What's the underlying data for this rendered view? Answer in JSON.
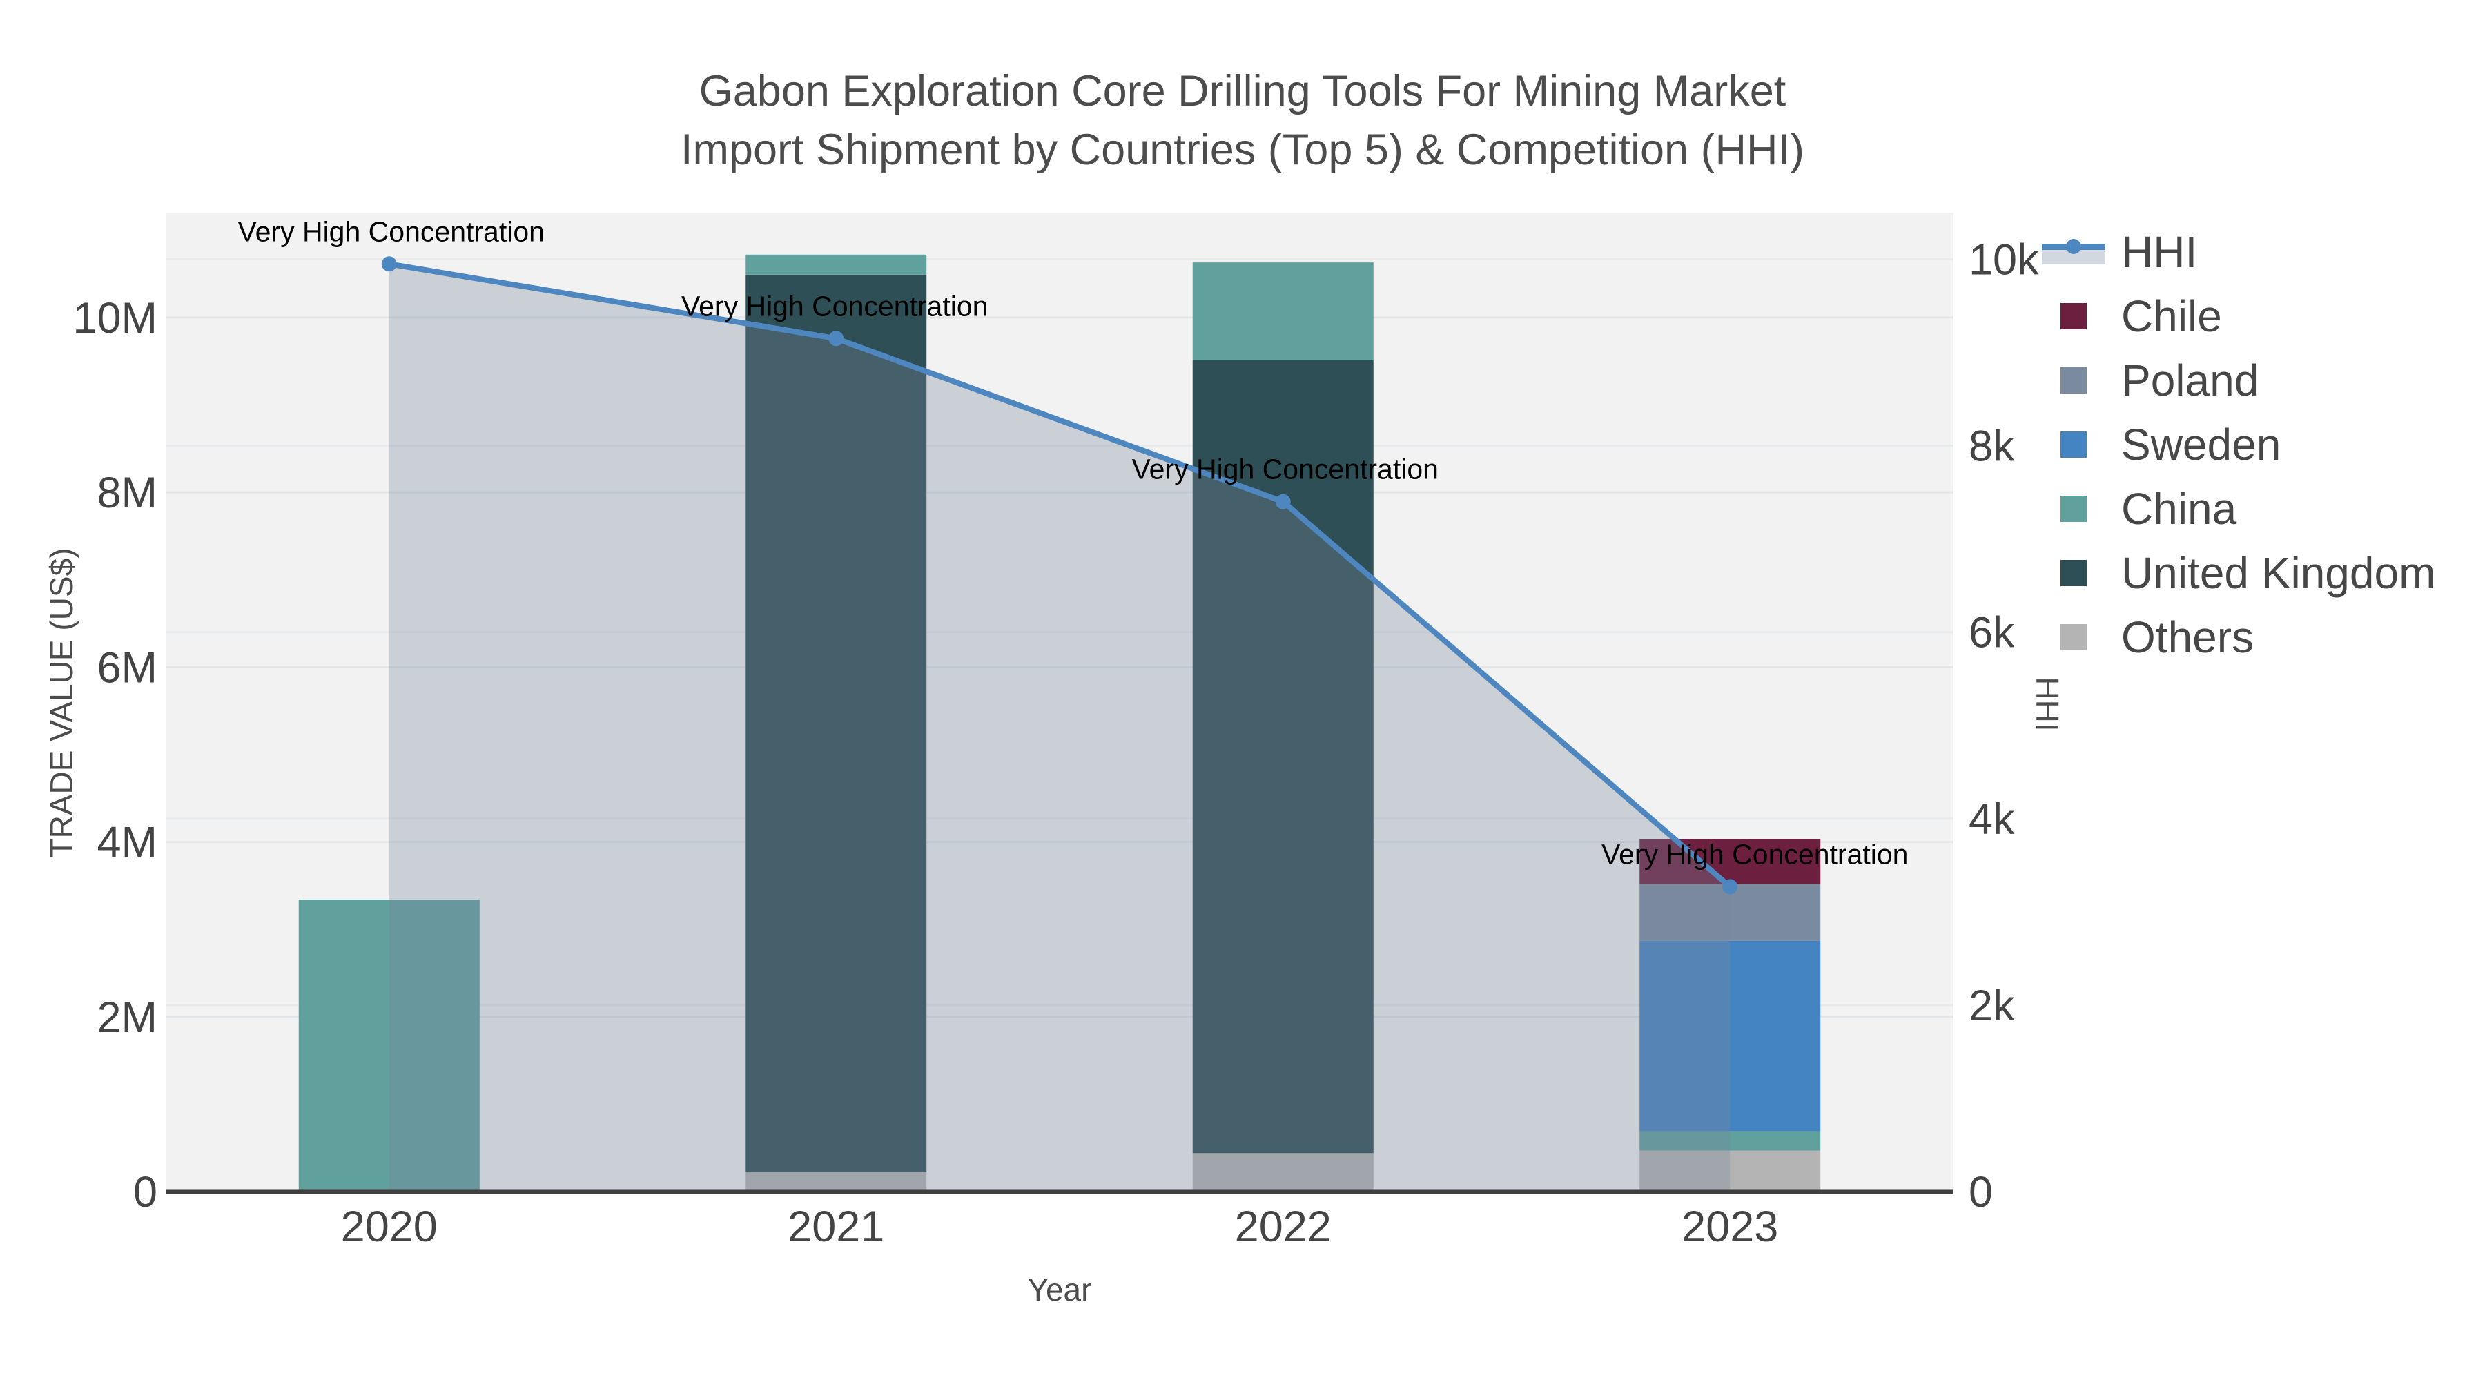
{
  "title": {
    "line1": "Gabon Exploration Core Drilling Tools For Mining Market",
    "line2": "Import Shipment by Countries (Top 5) & Competition (HHI)"
  },
  "axes": {
    "x": {
      "label": "Year",
      "ticks": [
        "2020",
        "2021",
        "2022",
        "2023"
      ]
    },
    "y_left": {
      "label": "TRADE VALUE (US$)",
      "ticks": [
        "0",
        "2M",
        "4M",
        "6M",
        "8M",
        "10M"
      ]
    },
    "y_right": {
      "label": "HHI",
      "ticks": [
        "0",
        "2k",
        "4k",
        "6k",
        "8k",
        "10k"
      ]
    }
  },
  "legend": {
    "items": [
      {
        "label": "HHI",
        "type": "line",
        "color": "#4e87c0"
      },
      {
        "label": "Chile",
        "type": "square",
        "color": "#6d1f40"
      },
      {
        "label": "Poland",
        "type": "square",
        "color": "#7b8b9f"
      },
      {
        "label": "Sweden",
        "type": "square",
        "color": "#4484c2"
      },
      {
        "label": "China",
        "type": "square",
        "color": "#60a19e"
      },
      {
        "label": "United Kingdom",
        "type": "square",
        "color": "#2d4f55"
      },
      {
        "label": "Others",
        "type": "square",
        "color": "#b4b4b4"
      }
    ]
  },
  "annotations": [
    {
      "text": "Very High Concentration",
      "year": "2020"
    },
    {
      "text": "Very High Concentration",
      "year": "2021"
    },
    {
      "text": "Very High Concentration",
      "year": "2022"
    },
    {
      "text": "Very High Concentration",
      "year": "2023"
    }
  ],
  "chart_data": {
    "type": "combo: stacked-bar + line (dual y-axis)",
    "categories": [
      "2020",
      "2021",
      "2022",
      "2023"
    ],
    "bar_unit": "US$ millions",
    "bar_series_bottom_to_top": [
      {
        "name": "Others",
        "color": "#b4b4b4",
        "values": [
          0,
          0.22,
          0.44,
          0.47
        ]
      },
      {
        "name": "United Kingdom",
        "color": "#2d4f55",
        "values": [
          0,
          10.27,
          9.07,
          0
        ]
      },
      {
        "name": "China",
        "color": "#60a19e",
        "values": [
          3.34,
          0.23,
          1.12,
          0.22
        ]
      },
      {
        "name": "Sweden",
        "color": "#4484c2",
        "values": [
          0,
          0,
          0,
          2.18
        ]
      },
      {
        "name": "Poland",
        "color": "#7b8b9f",
        "values": [
          0,
          0,
          0,
          0.65
        ]
      },
      {
        "name": "Chile",
        "color": "#6d1f40",
        "values": [
          0,
          0,
          0,
          0.51
        ]
      }
    ],
    "bar_totals_millions": [
      3.34,
      10.72,
      10.63,
      4.03
    ],
    "line_series": {
      "name": "HHI",
      "color": "#4e87c0",
      "values": [
        9950,
        9150,
        7400,
        3270
      ]
    },
    "area_fill": "rgba(120,135,155,0.32)",
    "y_left_range_millions": [
      0,
      11.2
    ],
    "y_right_range": [
      0,
      10500
    ],
    "grid": true,
    "legend_position": "right"
  },
  "colors": {
    "plot_bg": "#f2f2f2",
    "grid_left": "#e3e6e8",
    "grid_right": "#e8eaeb",
    "axis_line": "#3f3f3f",
    "title_text": "#4c4c4c",
    "tick_text": "#444444",
    "annotation_text": "#000000"
  }
}
